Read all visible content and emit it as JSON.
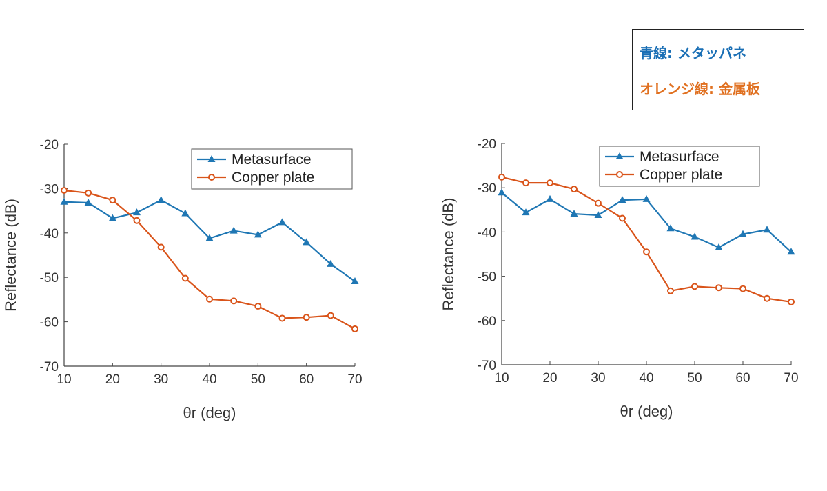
{
  "note": {
    "line1": "青線: メタッパネ",
    "line2": "オレンジ線: 金属板",
    "line1_color": "#1a6fb5",
    "line2_color": "#e07020"
  },
  "colors": {
    "metasurface": "#1f77b4",
    "copper": "#d9541a"
  },
  "chart_data": [
    {
      "type": "line",
      "xlabel": "θr (deg)",
      "ylabel": "Reflectance (dB)",
      "xlim": [
        10,
        70
      ],
      "ylim": [
        -70,
        -20
      ],
      "xticks": [
        10,
        20,
        30,
        40,
        50,
        60,
        70
      ],
      "yticks": [
        -20,
        -30,
        -40,
        -50,
        -60,
        -70
      ],
      "x": [
        10,
        15,
        20,
        25,
        30,
        35,
        40,
        45,
        50,
        55,
        60,
        65,
        70
      ],
      "legend_position": "top-right",
      "series": [
        {
          "name": "Metasurface",
          "marker": "triangle",
          "values": [
            -33.0,
            -33.2,
            -36.7,
            -35.4,
            -32.6,
            -35.6,
            -41.2,
            -39.5,
            -40.4,
            -37.6,
            -42.1,
            -47.0,
            -50.9
          ]
        },
        {
          "name": "Copper plate",
          "marker": "circle",
          "values": [
            -30.4,
            -31.0,
            -32.6,
            -37.2,
            -43.2,
            -50.2,
            -54.9,
            -55.3,
            -56.5,
            -59.2,
            -59.0,
            -58.6,
            -61.6
          ]
        }
      ]
    },
    {
      "type": "line",
      "xlabel": "θr (deg)",
      "ylabel": "Reflectance (dB)",
      "xlim": [
        10,
        70
      ],
      "ylim": [
        -70,
        -20
      ],
      "xticks": [
        10,
        20,
        30,
        40,
        50,
        60,
        70
      ],
      "yticks": [
        -20,
        -30,
        -40,
        -50,
        -60,
        -70
      ],
      "x": [
        10,
        15,
        20,
        25,
        30,
        35,
        40,
        45,
        50,
        55,
        60,
        65,
        70
      ],
      "legend_position": "top-right",
      "series": [
        {
          "name": "Metasurface",
          "marker": "triangle",
          "values": [
            -31.1,
            -35.6,
            -32.6,
            -35.9,
            -36.2,
            -32.8,
            -32.6,
            -39.2,
            -41.1,
            -43.5,
            -40.5,
            -39.5,
            -44.5
          ]
        },
        {
          "name": "Copper plate",
          "marker": "circle",
          "values": [
            -27.6,
            -28.9,
            -28.9,
            -30.3,
            -33.5,
            -36.9,
            -44.5,
            -53.3,
            -52.3,
            -52.6,
            -52.8,
            -55.0,
            -55.8
          ]
        }
      ]
    }
  ]
}
